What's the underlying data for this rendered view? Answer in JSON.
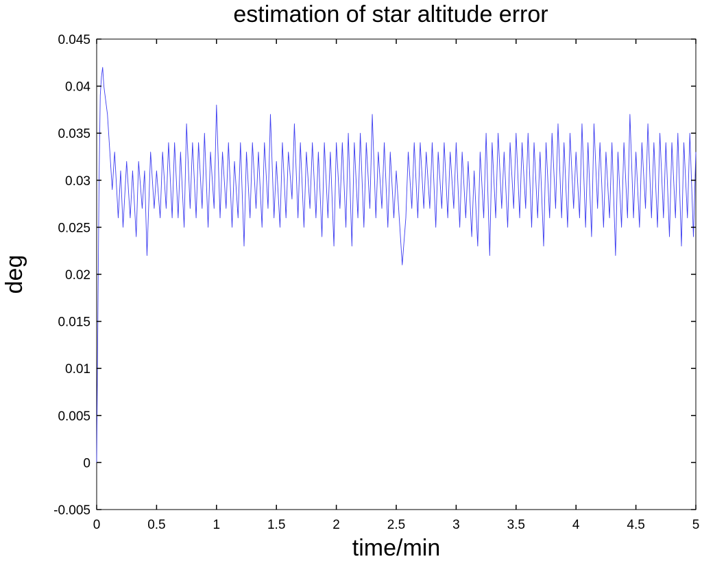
{
  "chart_data": {
    "type": "line",
    "title": "estimation of star altitude error",
    "xlabel": "time/min",
    "ylabel": "deg",
    "xlim": [
      0,
      5
    ],
    "ylim": [
      -0.005,
      0.045
    ],
    "x_ticks": [
      "0",
      "0.5",
      "1",
      "1.5",
      "2",
      "2.5",
      "3",
      "3.5",
      "4",
      "4.5",
      "5"
    ],
    "y_ticks": [
      "-0.005",
      "0",
      "0.005",
      "0.01",
      "0.015",
      "0.02",
      "0.025",
      "0.03",
      "0.035",
      "0.04",
      "0.045"
    ],
    "grid": false,
    "series": [
      {
        "color": "#3b3bf0",
        "x": [
          0,
          0.01,
          0.02,
          0.03,
          0.04,
          0.05,
          0.06,
          0.07,
          0.08,
          0.09,
          0.1,
          0.11,
          0.12,
          0.13,
          0.15,
          0.18,
          0.2,
          0.22,
          0.25,
          0.28,
          0.3,
          0.33,
          0.35,
          0.38,
          0.4,
          0.42,
          0.45,
          0.48,
          0.5,
          0.53,
          0.55,
          0.58,
          0.6,
          0.63,
          0.65,
          0.68,
          0.7,
          0.73,
          0.75,
          0.78,
          0.8,
          0.83,
          0.85,
          0.88,
          0.9,
          0.93,
          0.95,
          0.98,
          1.0,
          1.03,
          1.05,
          1.08,
          1.1,
          1.13,
          1.15,
          1.18,
          1.2,
          1.23,
          1.25,
          1.28,
          1.3,
          1.33,
          1.35,
          1.38,
          1.4,
          1.43,
          1.45,
          1.48,
          1.5,
          1.53,
          1.55,
          1.58,
          1.6,
          1.63,
          1.65,
          1.68,
          1.7,
          1.73,
          1.75,
          1.78,
          1.8,
          1.83,
          1.85,
          1.88,
          1.9,
          1.93,
          1.95,
          1.98,
          2.0,
          2.03,
          2.05,
          2.08,
          2.1,
          2.13,
          2.15,
          2.18,
          2.2,
          2.23,
          2.25,
          2.28,
          2.3,
          2.33,
          2.35,
          2.38,
          2.4,
          2.43,
          2.45,
          2.48,
          2.5,
          2.53,
          2.55,
          2.58,
          2.6,
          2.63,
          2.65,
          2.68,
          2.7,
          2.73,
          2.75,
          2.78,
          2.8,
          2.83,
          2.85,
          2.88,
          2.9,
          2.93,
          2.95,
          2.98,
          3.0,
          3.03,
          3.05,
          3.08,
          3.1,
          3.13,
          3.15,
          3.18,
          3.2,
          3.23,
          3.25,
          3.28,
          3.3,
          3.33,
          3.35,
          3.38,
          3.4,
          3.43,
          3.45,
          3.48,
          3.5,
          3.53,
          3.55,
          3.58,
          3.6,
          3.63,
          3.65,
          3.68,
          3.7,
          3.73,
          3.75,
          3.78,
          3.8,
          3.83,
          3.85,
          3.88,
          3.9,
          3.93,
          3.95,
          3.98,
          4.0,
          4.03,
          4.05,
          4.08,
          4.1,
          4.13,
          4.15,
          4.18,
          4.2,
          4.23,
          4.25,
          4.28,
          4.3,
          4.33,
          4.35,
          4.38,
          4.4,
          4.43,
          4.45,
          4.48,
          4.5,
          4.53,
          4.55,
          4.58,
          4.6,
          4.63,
          4.65,
          4.68,
          4.7,
          4.73,
          4.75,
          4.78,
          4.8,
          4.83,
          4.85,
          4.88,
          4.9,
          4.93,
          4.95,
          4.98,
          5.0
        ],
        "y": [
          0.0,
          0.015,
          0.03,
          0.039,
          0.041,
          0.042,
          0.04,
          0.039,
          0.038,
          0.037,
          0.035,
          0.033,
          0.031,
          0.029,
          0.033,
          0.026,
          0.031,
          0.025,
          0.032,
          0.026,
          0.031,
          0.024,
          0.032,
          0.027,
          0.031,
          0.022,
          0.033,
          0.027,
          0.031,
          0.026,
          0.033,
          0.027,
          0.034,
          0.026,
          0.034,
          0.026,
          0.033,
          0.025,
          0.036,
          0.027,
          0.034,
          0.026,
          0.034,
          0.027,
          0.035,
          0.025,
          0.033,
          0.027,
          0.038,
          0.026,
          0.033,
          0.027,
          0.034,
          0.025,
          0.032,
          0.026,
          0.034,
          0.023,
          0.033,
          0.026,
          0.034,
          0.027,
          0.033,
          0.025,
          0.034,
          0.027,
          0.037,
          0.026,
          0.032,
          0.025,
          0.034,
          0.026,
          0.033,
          0.028,
          0.036,
          0.026,
          0.034,
          0.025,
          0.033,
          0.027,
          0.034,
          0.026,
          0.033,
          0.024,
          0.034,
          0.026,
          0.033,
          0.023,
          0.034,
          0.027,
          0.034,
          0.025,
          0.035,
          0.023,
          0.034,
          0.026,
          0.035,
          0.025,
          0.034,
          0.027,
          0.037,
          0.026,
          0.033,
          0.027,
          0.034,
          0.025,
          0.033,
          0.026,
          0.031,
          0.025,
          0.021,
          0.026,
          0.033,
          0.027,
          0.034,
          0.026,
          0.034,
          0.027,
          0.033,
          0.027,
          0.034,
          0.025,
          0.033,
          0.027,
          0.034,
          0.026,
          0.033,
          0.027,
          0.034,
          0.025,
          0.033,
          0.026,
          0.032,
          0.024,
          0.031,
          0.023,
          0.033,
          0.026,
          0.035,
          0.022,
          0.034,
          0.026,
          0.035,
          0.027,
          0.033,
          0.025,
          0.034,
          0.027,
          0.035,
          0.026,
          0.034,
          0.027,
          0.035,
          0.025,
          0.034,
          0.026,
          0.033,
          0.023,
          0.034,
          0.026,
          0.035,
          0.027,
          0.036,
          0.026,
          0.034,
          0.025,
          0.035,
          0.027,
          0.033,
          0.026,
          0.036,
          0.025,
          0.034,
          0.024,
          0.036,
          0.027,
          0.034,
          0.025,
          0.033,
          0.026,
          0.034,
          0.022,
          0.033,
          0.025,
          0.034,
          0.026,
          0.037,
          0.026,
          0.033,
          0.025,
          0.034,
          0.027,
          0.036,
          0.026,
          0.034,
          0.025,
          0.035,
          0.026,
          0.034,
          0.024,
          0.034,
          0.026,
          0.035,
          0.023,
          0.034,
          0.026,
          0.035,
          0.024,
          0.033
        ]
      }
    ]
  }
}
